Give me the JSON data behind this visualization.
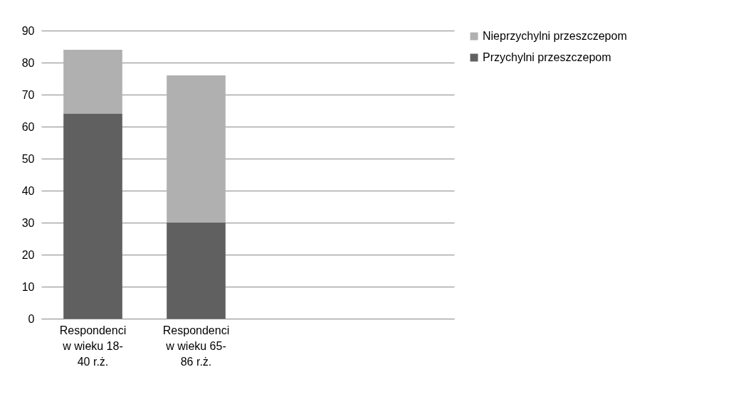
{
  "chart_data": {
    "type": "bar",
    "stacked": true,
    "categories": [
      "Respondenci w wieku 18-40 r.ż.",
      "Respondenci w wieku 65-86 r.ż.",
      null,
      null
    ],
    "series": [
      {
        "name": "Przychylni   przeszczepom",
        "color": "#606060",
        "values": [
          64,
          30,
          null,
          null
        ]
      },
      {
        "name": "Nieprzychylni  przeszczepom",
        "color": "#b0b0b0",
        "values": [
          20,
          46,
          null,
          null
        ]
      }
    ],
    "ylim": [
      0,
      90
    ],
    "yticks": [
      0,
      10,
      20,
      30,
      40,
      50,
      60,
      70,
      80,
      90
    ],
    "grid": "y",
    "legend": "right"
  }
}
